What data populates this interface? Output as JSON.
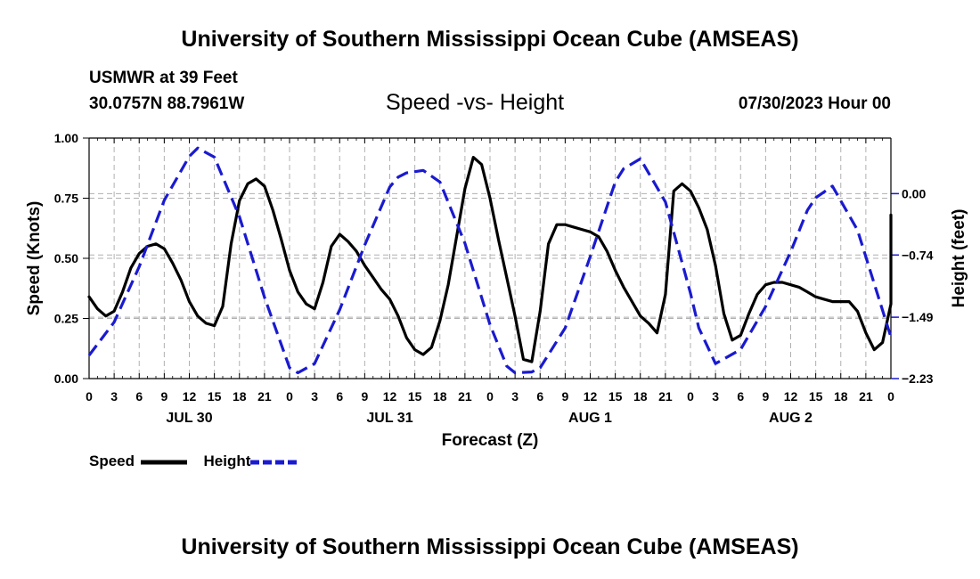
{
  "page": {
    "title_top": "University of Southern Mississippi Ocean Cube (AMSEAS)",
    "title_bottom": "University of Southern Mississippi Ocean Cube (AMSEAS)",
    "station": "USMWR at 39 Feet",
    "location": "30.0757N  88.7961W",
    "subtitle": "Speed -vs- Height",
    "date": "07/30/2023 Hour 00"
  },
  "colors": {
    "speed": "#000000",
    "height": "#1a1ad0",
    "grid": "#b0b0b0"
  },
  "chart_data": {
    "type": "line",
    "title": "Speed -vs- Height",
    "xlabel": "Forecast (Z)",
    "ylabel": "Speed (Knots)",
    "y2label": "Height (feet)",
    "xlim": [
      0,
      96
    ],
    "ylim": [
      0,
      1
    ],
    "y2lim": [
      -2.23,
      0.67
    ],
    "xticks": [
      0,
      3,
      6,
      9,
      12,
      15,
      18,
      21,
      24,
      27,
      30,
      33,
      36,
      39,
      42,
      45,
      48,
      51,
      54,
      57,
      60,
      63,
      66,
      69,
      72,
      75,
      78,
      81,
      84,
      87,
      90,
      93,
      96
    ],
    "xtick_labels": [
      "0",
      "3",
      "6",
      "9",
      "12",
      "15",
      "18",
      "21",
      "0",
      "3",
      "6",
      "9",
      "12",
      "15",
      "18",
      "21",
      "0",
      "3",
      "6",
      "9",
      "12",
      "15",
      "18",
      "21",
      "0",
      "3",
      "6",
      "9",
      "12",
      "15",
      "18",
      "21",
      "0"
    ],
    "yticks": [
      0,
      0.25,
      0.5,
      0.75,
      1.0
    ],
    "ytick_labels": [
      "0.00",
      "0.25",
      "0.50",
      "0.75",
      "1.00"
    ],
    "y2ticks": [
      0.0,
      -0.74,
      -1.49,
      -2.23
    ],
    "y2tick_labels": [
      "0.00",
      "−0.74",
      "−1.49",
      "−2.23"
    ],
    "day_labels": [
      {
        "hour": 12,
        "label": "JUL 30"
      },
      {
        "hour": 36,
        "label": "JUL 31"
      },
      {
        "hour": 60,
        "label": "AUG 1"
      },
      {
        "hour": 84,
        "label": "AUG 2"
      }
    ],
    "legend": [
      "Speed",
      "Height"
    ],
    "series": [
      {
        "name": "Speed",
        "axis": "left",
        "style": "solid",
        "x": [
          0,
          1,
          2,
          3,
          4,
          5,
          6,
          7,
          8,
          9,
          10,
          11,
          12,
          13,
          14,
          15,
          16,
          17,
          18,
          19,
          20,
          21,
          22,
          23,
          24,
          25,
          26,
          27,
          28,
          29,
          30,
          31,
          32,
          33,
          34,
          35,
          36,
          37,
          38,
          39,
          40,
          41,
          42,
          43,
          44,
          45,
          46,
          47,
          48,
          49,
          50,
          51,
          52,
          53,
          54,
          55,
          56,
          57,
          58,
          59,
          60,
          61,
          62,
          63,
          64,
          65,
          66,
          67,
          68,
          69,
          70,
          71,
          72,
          73,
          74,
          75,
          76,
          77,
          78,
          79,
          80,
          81,
          82,
          83,
          84,
          85,
          86,
          87,
          88,
          89,
          90,
          91,
          92,
          93,
          94,
          95,
          96
        ],
        "values": [
          0.34,
          0.29,
          0.26,
          0.28,
          0.36,
          0.46,
          0.52,
          0.55,
          0.56,
          0.54,
          0.48,
          0.41,
          0.32,
          0.26,
          0.23,
          0.22,
          0.3,
          0.56,
          0.74,
          0.81,
          0.83,
          0.8,
          0.7,
          0.58,
          0.45,
          0.36,
          0.31,
          0.29,
          0.4,
          0.55,
          0.6,
          0.57,
          0.53,
          0.47,
          0.42,
          0.37,
          0.33,
          0.26,
          0.17,
          0.12,
          0.1,
          0.13,
          0.24,
          0.39,
          0.59,
          0.79,
          0.92,
          0.89,
          0.75,
          0.58,
          0.42,
          0.26,
          0.08,
          0.07,
          0.28,
          0.56,
          0.64,
          0.64,
          0.63,
          0.62,
          0.61,
          0.59,
          0.53,
          0.45,
          0.38,
          0.32,
          0.26,
          0.23,
          0.19,
          0.35,
          0.78,
          0.81,
          0.78,
          0.71,
          0.62,
          0.47,
          0.27,
          0.16,
          0.18,
          0.27,
          0.35,
          0.39,
          0.4,
          0.4,
          0.39,
          0.38,
          0.36,
          0.34,
          0.33,
          0.32,
          0.32,
          0.32,
          0.28,
          0.19,
          0.12,
          0.15,
          0.31
        ]
      },
      {
        "name": "Height",
        "axis": "right",
        "style": "dashed",
        "x": [
          0,
          3,
          6,
          9,
          12,
          13,
          15,
          18,
          21,
          24,
          25,
          27,
          30,
          33,
          36,
          37,
          38,
          40,
          42,
          45,
          48,
          50,
          51,
          53,
          54,
          57,
          60,
          63,
          64,
          66,
          69,
          72,
          73,
          75,
          78,
          81,
          84,
          86,
          87,
          89,
          92,
          96
        ],
        "values": [
          -1.95,
          -1.55,
          -0.88,
          -0.08,
          0.45,
          0.55,
          0.44,
          -0.28,
          -1.25,
          -2.1,
          -2.16,
          -2.05,
          -1.4,
          -0.62,
          0.08,
          0.2,
          0.25,
          0.28,
          0.14,
          -0.6,
          -1.58,
          -2.08,
          -2.16,
          -2.15,
          -2.1,
          -1.62,
          -0.76,
          0.14,
          0.3,
          0.42,
          -0.1,
          -1.2,
          -1.62,
          -2.05,
          -1.88,
          -1.36,
          -0.7,
          -0.2,
          -0.05,
          0.09,
          -0.44,
          -1.73
        ]
      }
    ],
    "extra_points": [
      {
        "series": "Speed",
        "x": 97,
        "value": 0.68
      },
      {
        "series": "Speed",
        "x": 98,
        "value": 0.66
      }
    ]
  }
}
